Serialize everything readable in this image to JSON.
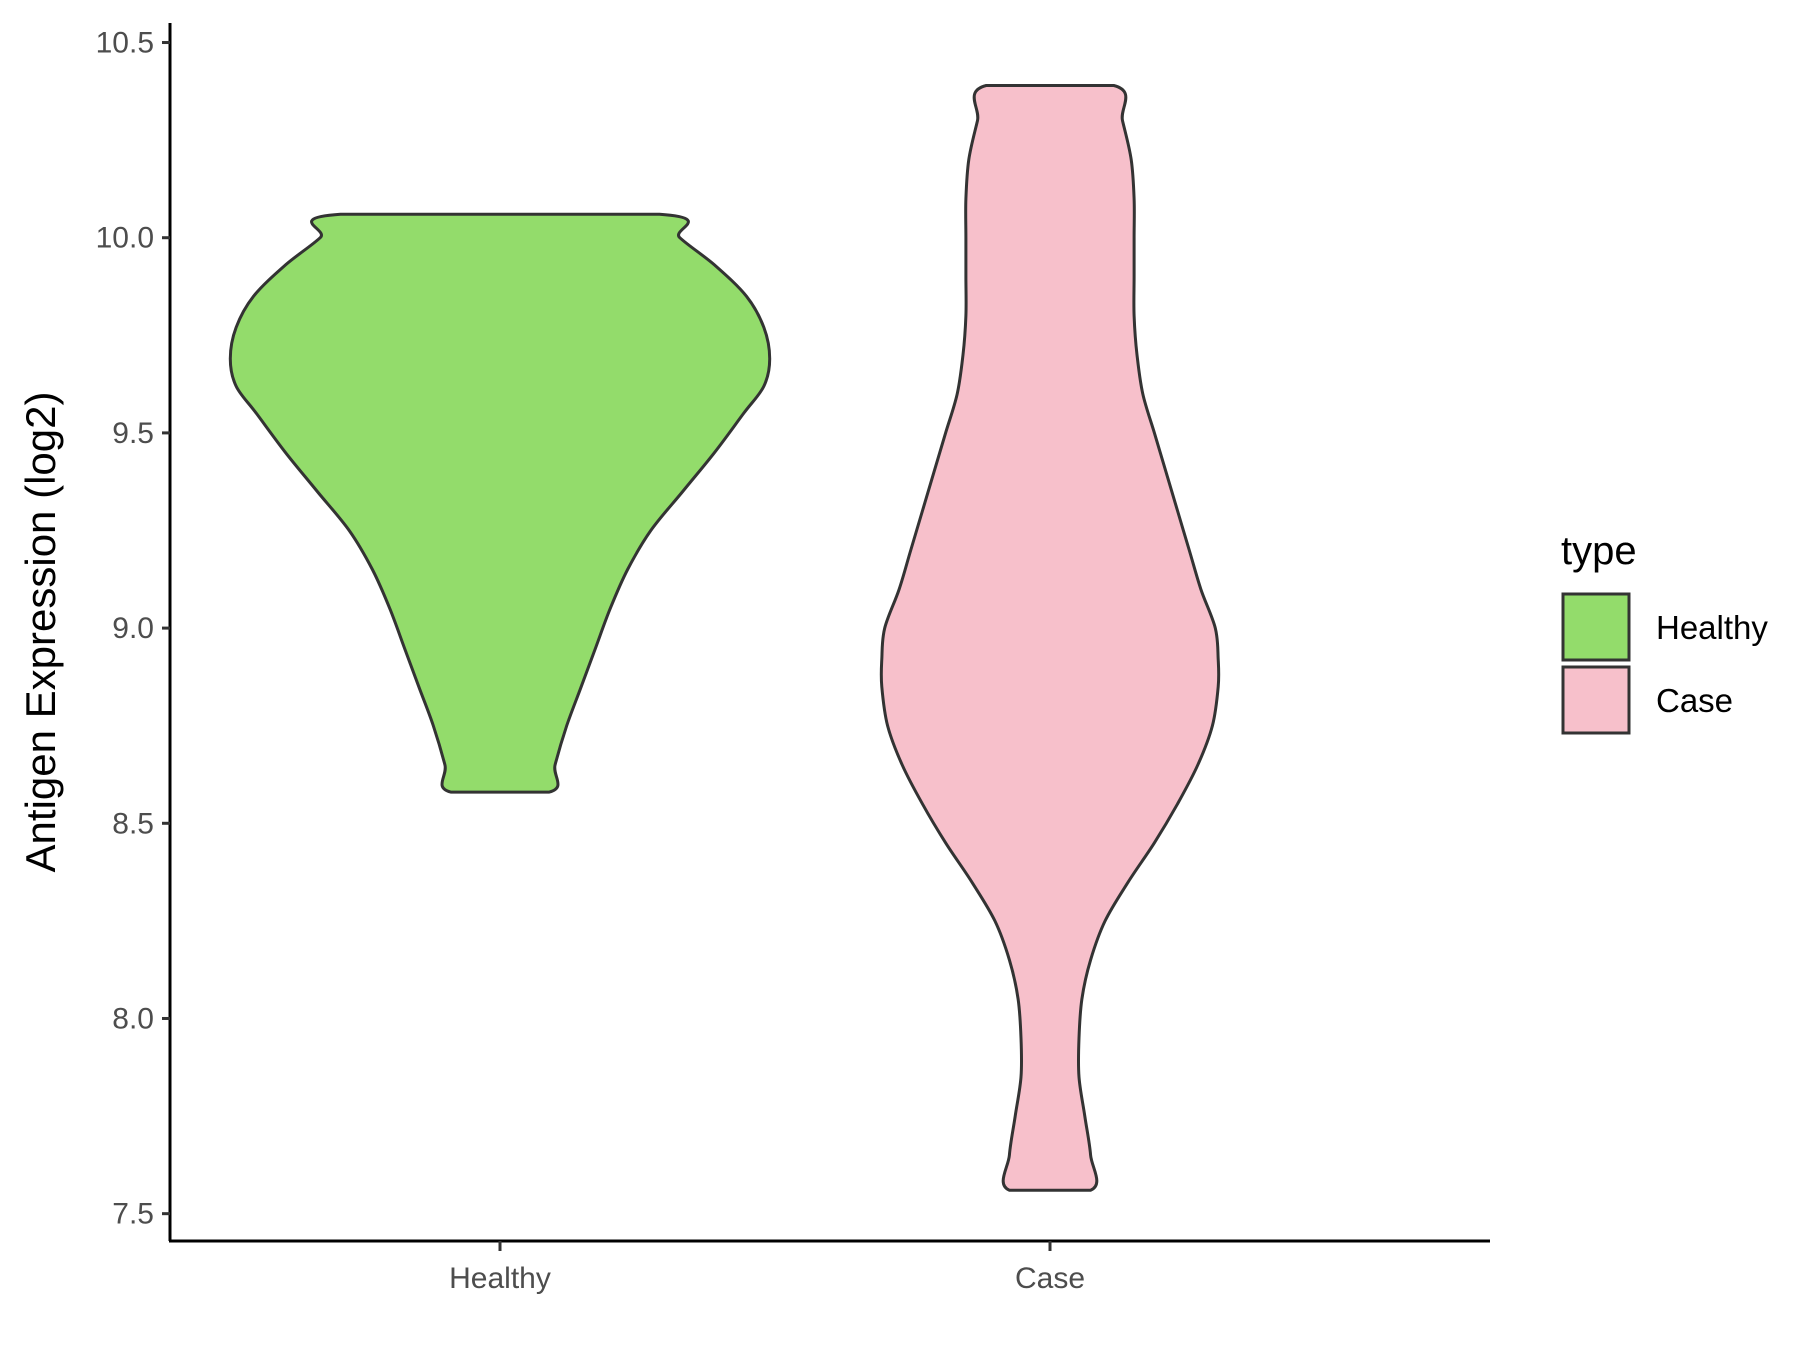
{
  "chart_data": {
    "type": "violin",
    "categories": [
      "Healthy",
      "Case"
    ],
    "ylabel": "Antigen Expression (log2)",
    "xlabel": "",
    "ylim": [
      7.43,
      10.55
    ],
    "yticks": [
      "7.5",
      "8.0",
      "8.5",
      "9.0",
      "9.5",
      "10.0",
      "10.5"
    ],
    "grid": false,
    "legend": {
      "title": "type",
      "position": "right",
      "entries": [
        {
          "label": "Healthy",
          "color": "#93dc6b"
        },
        {
          "label": "Case",
          "color": "#f7c0cb"
        }
      ]
    },
    "series": [
      {
        "category": "Healthy",
        "color": "#93dc6b",
        "min": 8.58,
        "max": 10.06,
        "density_profile": [
          [
            8.58,
            0.17
          ],
          [
            8.65,
            0.19
          ],
          [
            8.75,
            0.23
          ],
          [
            8.85,
            0.28
          ],
          [
            8.95,
            0.33
          ],
          [
            9.05,
            0.38
          ],
          [
            9.15,
            0.44
          ],
          [
            9.25,
            0.52
          ],
          [
            9.35,
            0.63
          ],
          [
            9.45,
            0.74
          ],
          [
            9.55,
            0.84
          ],
          [
            9.62,
            0.91
          ],
          [
            9.69,
            0.93
          ],
          [
            9.77,
            0.91
          ],
          [
            9.85,
            0.85
          ],
          [
            9.93,
            0.74
          ],
          [
            10.0,
            0.62
          ],
          [
            10.06,
            0.55
          ]
        ]
      },
      {
        "category": "Case",
        "color": "#f7c0cb",
        "min": 7.56,
        "max": 10.39,
        "density_profile": [
          [
            7.56,
            0.14
          ],
          [
            7.65,
            0.14
          ],
          [
            7.75,
            0.12
          ],
          [
            7.85,
            0.1
          ],
          [
            7.95,
            0.1
          ],
          [
            8.05,
            0.11
          ],
          [
            8.15,
            0.14
          ],
          [
            8.25,
            0.19
          ],
          [
            8.35,
            0.27
          ],
          [
            8.45,
            0.36
          ],
          [
            8.55,
            0.44
          ],
          [
            8.65,
            0.51
          ],
          [
            8.75,
            0.56
          ],
          [
            8.85,
            0.58
          ],
          [
            8.92,
            0.58
          ],
          [
            9.0,
            0.57
          ],
          [
            9.1,
            0.52
          ],
          [
            9.2,
            0.48
          ],
          [
            9.3,
            0.44
          ],
          [
            9.4,
            0.4
          ],
          [
            9.5,
            0.36
          ],
          [
            9.6,
            0.32
          ],
          [
            9.7,
            0.3
          ],
          [
            9.8,
            0.29
          ],
          [
            9.9,
            0.29
          ],
          [
            10.0,
            0.29
          ],
          [
            10.1,
            0.29
          ],
          [
            10.2,
            0.28
          ],
          [
            10.3,
            0.25
          ],
          [
            10.39,
            0.22
          ]
        ]
      }
    ]
  }
}
